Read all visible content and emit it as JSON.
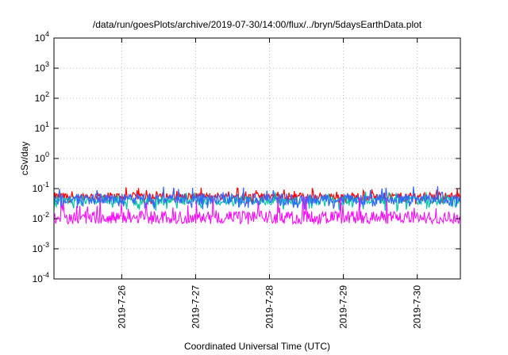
{
  "chart_data": {
    "type": "line",
    "title": "/data/run/goesPlots/archive/2019-07-30/14:00/flux/../bryn/5daysEarthData.plot",
    "xlabel": "Coordinated Universal Time (UTC)",
    "ylabel": "cSv/day",
    "y_scale": "log",
    "ylim": [
      0.0001,
      10000
    ],
    "xlim": [
      "2019-07-25T02:00",
      "2019-07-30T14:00"
    ],
    "grid": true,
    "legend": "none",
    "y_ticks": [
      {
        "value": 0.0001,
        "base": "10",
        "exp": "-4"
      },
      {
        "value": 0.001,
        "base": "10",
        "exp": "-3"
      },
      {
        "value": 0.01,
        "base": "10",
        "exp": "-2"
      },
      {
        "value": 0.1,
        "base": "10",
        "exp": "-1"
      },
      {
        "value": 1,
        "base": "10",
        "exp": "0"
      },
      {
        "value": 10,
        "base": "10",
        "exp": "1"
      },
      {
        "value": 100,
        "base": "10",
        "exp": "2"
      },
      {
        "value": 1000,
        "base": "10",
        "exp": "3"
      },
      {
        "value": 10000,
        "base": "10",
        "exp": "4"
      }
    ],
    "x_ticks": [
      {
        "value": "2019-07-26",
        "label": "2019-7-26"
      },
      {
        "value": "2019-07-27",
        "label": "2019-7-27"
      },
      {
        "value": "2019-07-28",
        "label": "2019-7-28"
      },
      {
        "value": "2019-07-29",
        "label": "2019-7-29"
      },
      {
        "value": "2019-07-30",
        "label": "2019-7-30"
      }
    ],
    "series": [
      {
        "color": "#ff0000",
        "y_typical": 0.055,
        "y_min": 0.03,
        "y_max": 0.11
      },
      {
        "color": "#00c8a0",
        "y_typical": 0.04,
        "y_min": 0.018,
        "y_max": 0.08
      },
      {
        "color": "#3366ff",
        "y_typical": 0.045,
        "y_min": 0.02,
        "y_max": 0.12
      },
      {
        "color": "#ff00ff",
        "y_typical": 0.011,
        "y_min": 0.0065,
        "y_max": 0.06
      }
    ]
  }
}
